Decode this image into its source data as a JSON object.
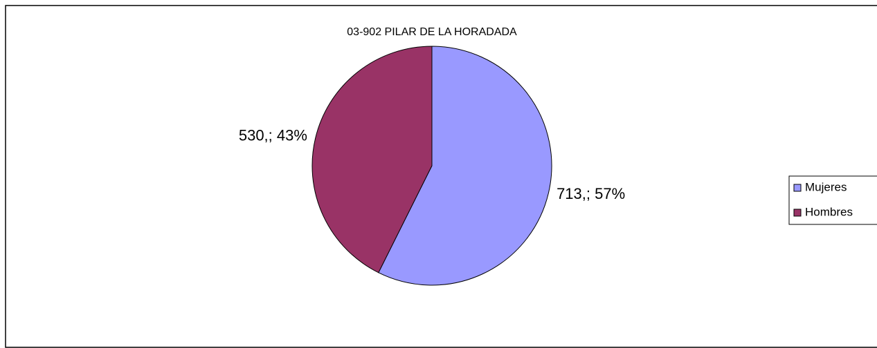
{
  "chart_data": {
    "type": "pie",
    "title": "03-902 PILAR DE LA HORADADA",
    "categories": [
      "Mujeres",
      "Hombres"
    ],
    "values": [
      713,
      530
    ],
    "value_labels": [
      "713,; 57%",
      "530,; 43%"
    ],
    "colors": [
      "#9999ff",
      "#993366"
    ],
    "legend": "right"
  }
}
